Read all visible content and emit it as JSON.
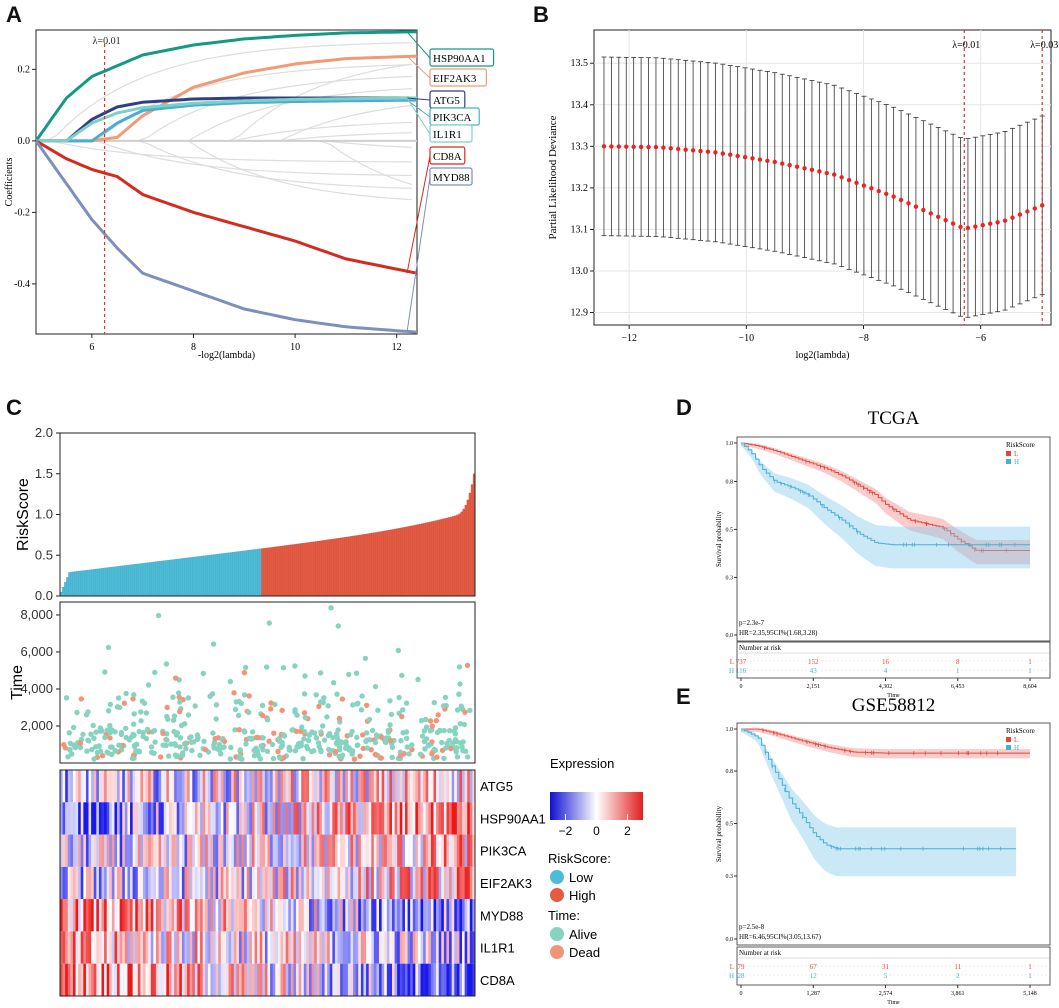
{
  "panel_labels": {
    "a": "A",
    "b": "B",
    "c": "C",
    "d": "D",
    "e": "E"
  },
  "colors": {
    "teal": "#149a82",
    "salmon": "#f09b74",
    "navy": "#2f3f86",
    "lightteal": "#7fd0c4",
    "cyan": "#4aaed0",
    "red": "#d42a1f",
    "steel": "#7d8fba",
    "grey": "#dddddd",
    "low": "#4dbcd6",
    "high": "#e45a43",
    "alive": "#86d3c2",
    "dead": "#f0957a"
  },
  "chart_data": [
    {
      "id": "A",
      "type": "line",
      "xlabel": "-log2(lambda)",
      "ylabel": "Coefficients",
      "xlim": [
        4.9,
        12.4
      ],
      "ylim": [
        -0.54,
        0.31
      ],
      "xticks": [
        "6",
        "8",
        "10",
        "12"
      ],
      "yticks": [
        "0.2",
        "0.0",
        "-0.2",
        "-0.4"
      ],
      "vline": {
        "x": 6.25,
        "label": "λ=0.01"
      },
      "x": [
        4.9,
        5.5,
        6.0,
        6.5,
        7.0,
        8.0,
        9.0,
        10.0,
        11.0,
        12.4
      ],
      "series": [
        {
          "name": "HSP90AA1",
          "values": [
            0.0,
            0.12,
            0.18,
            0.21,
            0.24,
            0.268,
            0.285,
            0.295,
            0.302,
            0.305
          ],
          "color": "#149a82"
        },
        {
          "name": "EIF2AK3",
          "values": [
            0.0,
            0.0,
            0.0,
            0.01,
            0.07,
            0.15,
            0.19,
            0.215,
            0.23,
            0.237
          ],
          "color": "#f09b74"
        },
        {
          "name": "ATG5",
          "values": [
            0.0,
            0.0,
            0.06,
            0.095,
            0.108,
            0.117,
            0.12,
            0.12,
            0.12,
            0.12
          ],
          "color": "#2f3f86"
        },
        {
          "name": "PIK3CA",
          "values": [
            0.0,
            0.0,
            0.0,
            0.05,
            0.085,
            0.1,
            0.107,
            0.11,
            0.112,
            0.114
          ],
          "color": "#4aaed0"
        },
        {
          "name": "IL1R1",
          "values": [
            0.0,
            0.0,
            0.05,
            0.078,
            0.093,
            0.105,
            0.112,
            0.116,
            0.118,
            0.12
          ],
          "color": "#7fd0c4"
        },
        {
          "name": "CD8A",
          "values": [
            0.0,
            -0.05,
            -0.08,
            -0.1,
            -0.15,
            -0.2,
            -0.24,
            -0.28,
            -0.33,
            -0.37
          ],
          "color": "#d42a1f"
        },
        {
          "name": "MYD88",
          "values": [
            0.0,
            -0.12,
            -0.22,
            -0.3,
            -0.37,
            -0.42,
            -0.47,
            -0.5,
            -0.52,
            -0.535
          ],
          "color": "#7d8fba"
        }
      ],
      "legend": [
        "HSP90AA1",
        "EIF2AK3",
        "ATG5",
        "PIK3CA",
        "IL1R1",
        "CD8A",
        "MYD88"
      ]
    },
    {
      "id": "B",
      "type": "scatter",
      "xlabel": "log2(lambda)",
      "ylabel": "Partial Likelihood Deviance",
      "xlim": [
        -12.6,
        -4.8
      ],
      "ylim": [
        12.87,
        13.58
      ],
      "xticks": [
        "-12",
        "-10",
        "-8",
        "-6"
      ],
      "yticks": [
        "13.5",
        "13.4",
        "13.3",
        "13.2",
        "13.1",
        "13.0",
        "12.9"
      ],
      "vlines": [
        {
          "x": -6.28,
          "label": "λ=0.01"
        },
        {
          "x": -4.95,
          "label": "λ=0.03"
        }
      ],
      "x_start": -12.43,
      "x_end": -4.95,
      "n_points": 60,
      "curve_x": [
        -12.43,
        -11.5,
        -10.5,
        -9.5,
        -8.5,
        -7.5,
        -6.28,
        -5.6,
        -4.95
      ],
      "curve_y": [
        13.3,
        13.298,
        13.285,
        13.262,
        13.232,
        13.18,
        13.102,
        13.12,
        13.158
      ],
      "error_bar_halfwidth": 0.215
    },
    {
      "id": "C",
      "type": "bar",
      "ylabel_risk": "RiskScore",
      "ylabel_time": "Time",
      "risk_yticks": [
        "2.0",
        "1.5",
        "1.0",
        "0.5",
        "0.0"
      ],
      "risk_ylim": [
        0,
        2.0
      ],
      "time_yticks": [
        "8,000",
        "6,000",
        "4,000",
        "2,000"
      ],
      "time_ylim": [
        0,
        8700
      ],
      "n_samples": 200,
      "low_count": 97,
      "genes": [
        "ATG5",
        "HSP90AA1",
        "PIK3CA",
        "EIF2AK3",
        "MYD88",
        "IL1R1",
        "CD8A"
      ],
      "legend": {
        "expression_title": "Expression",
        "expression_ticks": [
          "-2",
          "0",
          "2"
        ],
        "riskscore_title": "RiskScore:",
        "low": "Low",
        "high": "High",
        "time_title": "Time:",
        "alive": "Alive",
        "dead": "Dead"
      }
    },
    {
      "id": "D",
      "type": "line",
      "title": "TCGA",
      "ylabel": "Survival probability",
      "xlabel": "Time",
      "legend_title": "RiskScore",
      "legend": [
        "L",
        "H"
      ],
      "yticks": [
        "1.0",
        "0.8",
        "0.5",
        "0.3",
        "0.0"
      ],
      "xticks": [
        "0",
        "2,151",
        "4,302",
        "6,453",
        "8,604"
      ],
      "xlim": [
        0,
        8604
      ],
      "series": [
        {
          "name": "L",
          "x": [
            0,
            500,
            1000,
            1500,
            2000,
            2500,
            3000,
            3500,
            4000,
            4302,
            5000,
            6000,
            6453,
            7000,
            8000,
            8604
          ],
          "values": [
            1.0,
            0.985,
            0.96,
            0.93,
            0.9,
            0.87,
            0.83,
            0.78,
            0.73,
            0.68,
            0.6,
            0.56,
            0.5,
            0.44,
            0.44,
            0.44
          ]
        },
        {
          "name": "H",
          "x": [
            0,
            300,
            600,
            1000,
            1500,
            2000,
            2500,
            3000,
            3500,
            4000,
            4500,
            6000,
            8604
          ],
          "values": [
            1.0,
            0.95,
            0.87,
            0.8,
            0.77,
            0.73,
            0.66,
            0.6,
            0.53,
            0.48,
            0.47,
            0.47,
            0.47
          ]
        }
      ],
      "stats": [
        "p=2.3e-7",
        "HR=2.35,95CI%(1.68,3.28)"
      ],
      "risk_table": {
        "title": "Number at risk",
        "rows": [
          {
            "label": "L",
            "values": [
              "737",
              "152",
              "16",
              "8",
              "1"
            ]
          },
          {
            "label": "H",
            "values": [
              "116",
              "43",
              "4",
              "1",
              "1"
            ]
          }
        ]
      }
    },
    {
      "id": "E",
      "type": "line",
      "title": "GSE58812",
      "ylabel": "Survival probability",
      "xlabel": "Time",
      "legend_title": "RiskScore",
      "legend": [
        "L",
        "H"
      ],
      "yticks": [
        "1.0",
        "0.8",
        "0.5",
        "0.3",
        "0.0"
      ],
      "xticks": [
        "0",
        "1,287",
        "2,574",
        "3,861",
        "5,148"
      ],
      "xlim": [
        0,
        5148
      ],
      "series": [
        {
          "name": "L",
          "x": [
            0,
            300,
            600,
            1000,
            1287,
            1600,
            2000,
            2574,
            3500,
            5148
          ],
          "values": [
            1.0,
            1.0,
            0.98,
            0.95,
            0.93,
            0.91,
            0.89,
            0.885,
            0.885,
            0.885
          ]
        },
        {
          "name": "H",
          "x": [
            0,
            300,
            500,
            700,
            900,
            1100,
            1300,
            1500,
            1700,
            2000,
            4900
          ],
          "values": [
            1.0,
            0.96,
            0.85,
            0.75,
            0.65,
            0.58,
            0.5,
            0.45,
            0.43,
            0.43,
            0.43
          ]
        }
      ],
      "stats": [
        "p=2.5e-8",
        "HR=6.46,95CI%(3.05,13.67)"
      ],
      "risk_table": {
        "title": "Number at risk",
        "rows": [
          {
            "label": "L",
            "values": [
              "79",
              "67",
              "31",
              "11",
              "1"
            ]
          },
          {
            "label": "H",
            "values": [
              "28",
              "12",
              "5",
              "2",
              "1"
            ]
          }
        ]
      }
    }
  ]
}
